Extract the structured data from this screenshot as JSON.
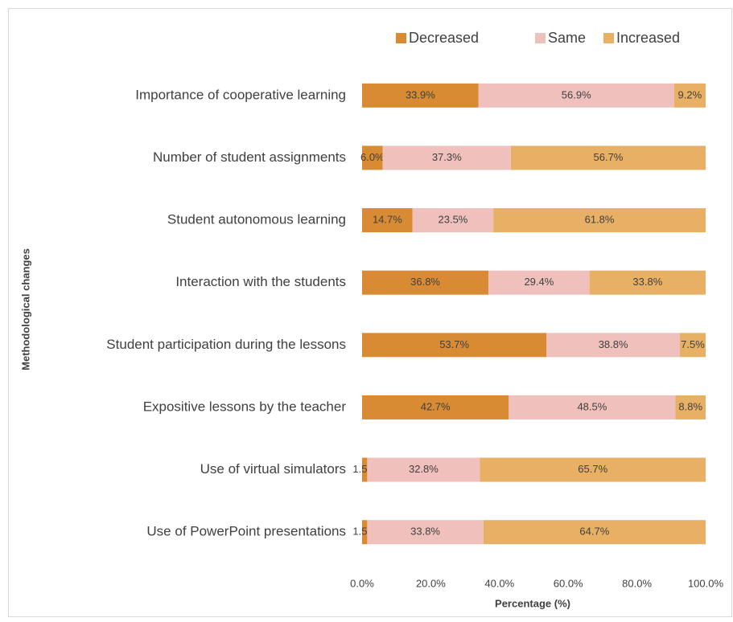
{
  "chart_data": {
    "type": "stacked-barh",
    "categories": [
      "Importance of cooperative learning",
      "Number of student assignments",
      "Student autonomous learning",
      "Interaction with the students",
      "Student participation during the lessons",
      "Expositive lessons by the teacher",
      "Use of virtual simulators",
      "Use of PowerPoint presentations"
    ],
    "series": [
      {
        "name": "Decreased",
        "color": "#d98b34",
        "values": [
          33.9,
          6.0,
          14.7,
          36.8,
          53.7,
          42.7,
          1.5,
          1.5
        ],
        "value_labels": [
          "33.9%",
          "6.0%",
          "14.7%",
          "36.8%",
          "53.7%",
          "42.7%",
          "1.5%",
          "1.5%"
        ]
      },
      {
        "name": "Same",
        "color": "#f0c0bc",
        "values": [
          56.9,
          37.3,
          23.5,
          29.4,
          38.8,
          48.5,
          32.8,
          33.8
        ],
        "value_labels": [
          "56.9%",
          "37.3%",
          "23.5%",
          "29.4%",
          "38.8%",
          "48.5%",
          "32.8%",
          "33.8%"
        ]
      },
      {
        "name": "Increased",
        "color": "#e8b064",
        "values": [
          9.2,
          56.7,
          61.8,
          33.8,
          7.5,
          8.8,
          65.7,
          64.7
        ],
        "value_labels": [
          "9.2%",
          "56.7%",
          "61.8%",
          "33.8%",
          "7.5%",
          "8.8%",
          "65.7%",
          "64.7%"
        ]
      }
    ],
    "xlim": [
      0,
      100
    ],
    "xticks": [
      {
        "value": 0,
        "label": "0.0%"
      },
      {
        "value": 20,
        "label": "20.0%"
      },
      {
        "value": 40,
        "label": "40.0%"
      },
      {
        "value": 60,
        "label": "60.0%"
      },
      {
        "value": 80,
        "label": "80.0%"
      },
      {
        "value": 100,
        "label": "100.0%"
      }
    ],
    "xlabel": "Percentage (%)",
    "ylabel": "Methodological changes",
    "legend": "top"
  }
}
